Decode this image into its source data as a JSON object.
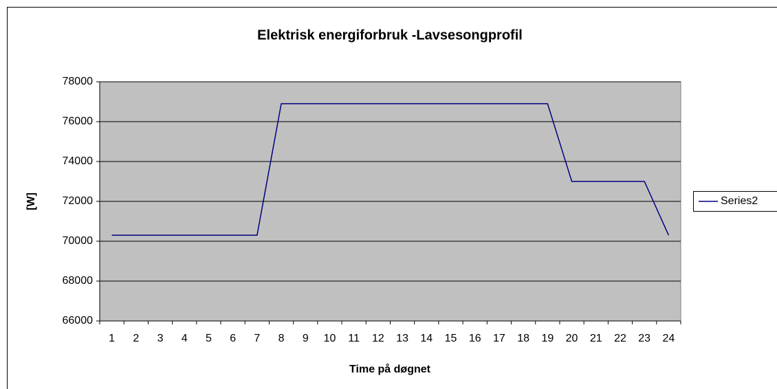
{
  "chart_data": {
    "type": "line",
    "title": "Elektrisk energiforbruk -Lavsesongprofil",
    "x_label": "Time på døgnet",
    "y_label": "[W]",
    "categories": [
      "1",
      "2",
      "3",
      "4",
      "5",
      "6",
      "7",
      "8",
      "9",
      "10",
      "11",
      "12",
      "13",
      "14",
      "15",
      "16",
      "17",
      "18",
      "19",
      "20",
      "21",
      "22",
      "23",
      "24"
    ],
    "series": [
      {
        "name": "Series2",
        "color": "#000080",
        "values": [
          70300,
          70300,
          70300,
          70300,
          70300,
          70300,
          70300,
          76900,
          76900,
          76900,
          76900,
          76900,
          76900,
          76900,
          76900,
          76900,
          76900,
          76900,
          76900,
          73000,
          73000,
          73000,
          73000,
          70300
        ]
      }
    ],
    "ylim": [
      66000,
      78000
    ],
    "yticks": [
      66000,
      68000,
      70000,
      72000,
      74000,
      76000,
      78000
    ],
    "grid": true,
    "plot_background": "#c0c0c0",
    "legend": "right"
  }
}
